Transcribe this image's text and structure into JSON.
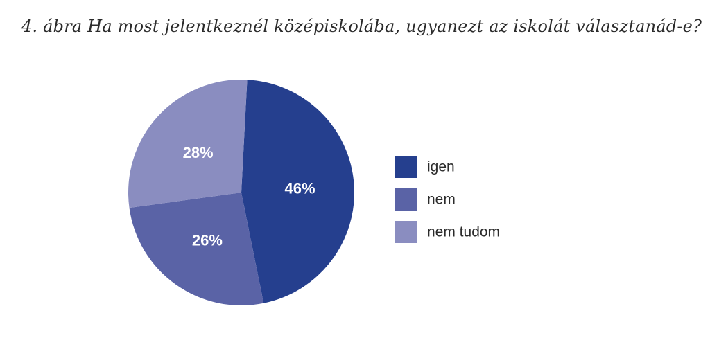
{
  "title": "4. ábra Ha most jelentkeznél középiskolába, ugyanezt az iskolát választanád-e?",
  "chart_data": {
    "type": "pie",
    "title": "4. ábra Ha most jelentkeznél középiskolába, ugyanezt az iskolát választanád-e?",
    "categories": [
      "igen",
      "nem",
      "nem tudom"
    ],
    "values": [
      46,
      26,
      28
    ],
    "labels": [
      "46%",
      "26%",
      "28%"
    ],
    "colors": [
      "#253f8e",
      "#5a63a6",
      "#8a8dc0"
    ],
    "legend_position": "right"
  }
}
